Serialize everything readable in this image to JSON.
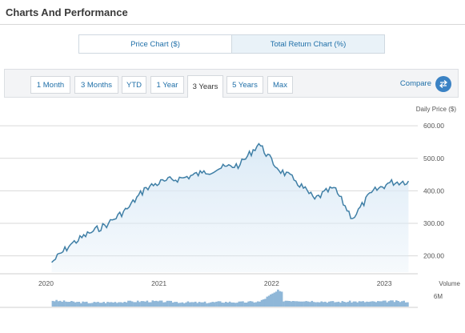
{
  "header": {
    "title": "Charts And Performance"
  },
  "chart_toggle": {
    "options": [
      "Price Chart ($)",
      "Total Return Chart (%)"
    ],
    "active": 1
  },
  "ranges": {
    "items": [
      "1 Month",
      "3 Months",
      "YTD",
      "1 Year",
      "3 Years",
      "5 Years",
      "Max"
    ],
    "active": "3 Years"
  },
  "compare": {
    "label": "Compare",
    "icon": "swap-arrows-icon"
  },
  "colors": {
    "line": "#3f7fa6",
    "fill": "#dbeaf6",
    "accent": "#3b82c4",
    "volume": "#8fb7d8"
  },
  "chart_data": {
    "type": "area",
    "ylabel": "Daily Price ($)",
    "y_ticks": [
      "600.00",
      "500.00",
      "400.00",
      "300.00",
      "200.00"
    ],
    "ylim": [
      150,
      620
    ],
    "x_ticks": [
      "2020",
      "2021",
      "2022",
      "2023"
    ],
    "x": [
      "2020-03",
      "2020-05",
      "2020-07",
      "2020-09",
      "2020-11",
      "2021-01",
      "2021-03",
      "2021-05",
      "2021-07",
      "2021-09",
      "2021-11",
      "2022-01",
      "2022-03",
      "2022-05",
      "2022-07",
      "2022-09",
      "2022-11",
      "2023-01",
      "2023-03",
      "2023-05"
    ],
    "values": [
      180,
      235,
      270,
      300,
      345,
      410,
      430,
      440,
      455,
      470,
      480,
      545,
      470,
      430,
      375,
      410,
      315,
      395,
      425,
      430
    ],
    "volume_label": "Volume",
    "volume_tick": "6M",
    "volume": [
      1.8,
      1.4,
      1.2,
      1.3,
      1.5,
      1.6,
      1.5,
      1.3,
      1.2,
      1.4,
      1.3,
      1.5,
      4.8,
      1.8,
      1.6,
      1.4,
      1.5,
      1.4,
      1.6,
      1.5
    ],
    "grid": true,
    "legend": "none"
  }
}
